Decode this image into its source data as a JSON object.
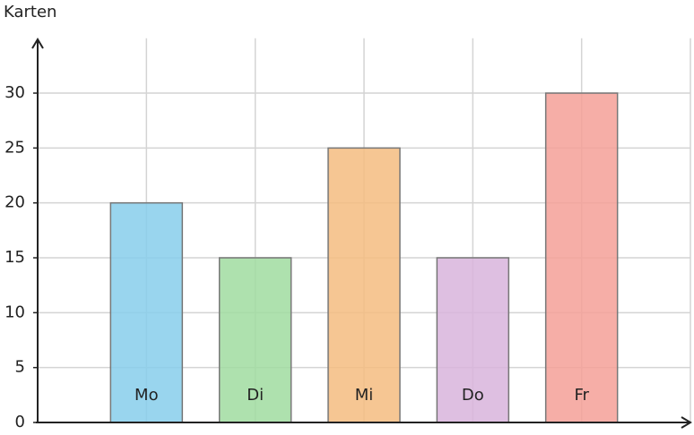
{
  "chart_data": {
    "type": "bar",
    "ylabel": "Karten",
    "categories": [
      "Mo",
      "Di",
      "Mi",
      "Do",
      "Fr"
    ],
    "values": [
      20,
      15,
      25,
      15,
      30
    ],
    "colors": [
      "#87ceeb",
      "#a0dca0",
      "#f4bc80",
      "#d8b4dc",
      "#f4a098"
    ],
    "ylim": [
      0,
      35
    ],
    "yticks": [
      0,
      5,
      10,
      15,
      20,
      25,
      30
    ],
    "grid": true
  }
}
